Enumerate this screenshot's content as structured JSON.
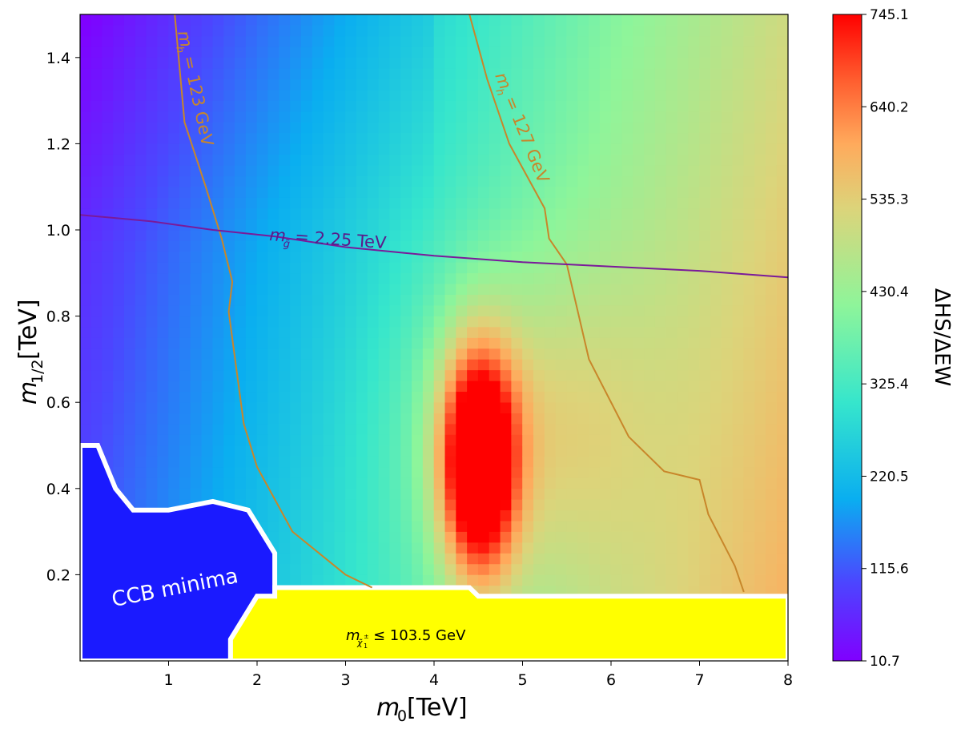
{
  "chart_data": {
    "type": "heatmap",
    "title": "",
    "xlabel": "m",
    "xlabel_sub": "0",
    "xlabel_unit": " [TeV]",
    "ylabel": "m",
    "ylabel_sub": "1/2",
    "ylabel_unit": " [TeV]",
    "xlim": [
      0,
      8
    ],
    "ylim": [
      0,
      1.5
    ],
    "x_ticks": [
      1,
      2,
      3,
      4,
      5,
      6,
      7,
      8
    ],
    "y_ticks": [
      0.2,
      0.4,
      0.6,
      0.8,
      1.0,
      1.2,
      1.4
    ],
    "x_tick_labels": [
      "1",
      "2",
      "3",
      "4",
      "5",
      "6",
      "7",
      "8"
    ],
    "y_tick_labels": [
      "0.2",
      "0.4",
      "0.6",
      "0.8",
      "1.0",
      "1.2",
      "1.4"
    ],
    "colorscale": "rainbow",
    "colorbar": {
      "label": "ΔHS/ΔEW",
      "range": [
        10.7,
        745.1
      ],
      "ticks": [
        10.7,
        115.6,
        220.5,
        325.4,
        430.4,
        535.3,
        640.2,
        745.1
      ],
      "tick_labels": [
        "10.7",
        "115.6",
        "220.5",
        "325.4",
        "430.4",
        "535.3",
        "640.2",
        "745.1"
      ]
    },
    "peak": {
      "x": 4.5,
      "y": 0.46,
      "value": 745.1
    },
    "contours": [
      {
        "label": "mh = 123 GeV",
        "color": "#c8862a",
        "points": [
          [
            1.07,
            1.5
          ],
          [
            1.18,
            1.25
          ],
          [
            1.42,
            1.1
          ],
          [
            1.6,
            0.98
          ],
          [
            1.72,
            0.88
          ],
          [
            1.68,
            0.81
          ],
          [
            1.85,
            0.55
          ],
          [
            2.0,
            0.45
          ],
          [
            2.4,
            0.3
          ],
          [
            3.0,
            0.2
          ],
          [
            3.3,
            0.17
          ]
        ]
      },
      {
        "label": "mh = 127 GeV",
        "color": "#c8862a",
        "points": [
          [
            4.4,
            1.5
          ],
          [
            4.6,
            1.35
          ],
          [
            4.85,
            1.2
          ],
          [
            5.25,
            1.05
          ],
          [
            5.3,
            0.98
          ],
          [
            5.5,
            0.92
          ],
          [
            5.75,
            0.7
          ],
          [
            6.2,
            0.52
          ],
          [
            6.6,
            0.44
          ],
          [
            7.0,
            0.42
          ],
          [
            7.1,
            0.34
          ],
          [
            7.4,
            0.22
          ],
          [
            7.5,
            0.16
          ]
        ]
      },
      {
        "label": "mg̃ = 2.25 TeV",
        "color": "#7a1a9a",
        "points": [
          [
            0,
            1.035
          ],
          [
            0.8,
            1.02
          ],
          [
            1.5,
            1.0
          ],
          [
            2.2,
            0.985
          ],
          [
            3.0,
            0.96
          ],
          [
            4.0,
            0.94
          ],
          [
            5.0,
            0.925
          ],
          [
            6.0,
            0.915
          ],
          [
            7.0,
            0.905
          ],
          [
            8.0,
            0.89
          ]
        ]
      }
    ],
    "regions": [
      {
        "label": "CCB minima",
        "color": "#1a1aff",
        "points": [
          [
            0,
            0
          ],
          [
            1.7,
            0
          ],
          [
            1.7,
            0.05
          ],
          [
            2.0,
            0.15
          ],
          [
            2.2,
            0.15
          ],
          [
            2.2,
            0.25
          ],
          [
            1.9,
            0.35
          ],
          [
            1.5,
            0.37
          ],
          [
            1.0,
            0.35
          ],
          [
            0.6,
            0.35
          ],
          [
            0.4,
            0.4
          ],
          [
            0.2,
            0.5
          ],
          [
            0,
            0.5
          ]
        ]
      },
      {
        "label": "mχ̃1± ≤ 103.5 GeV",
        "color": "#ffff00",
        "points": [
          [
            1.7,
            0
          ],
          [
            8,
            0
          ],
          [
            8,
            0.15
          ],
          [
            4.5,
            0.15
          ],
          [
            4.4,
            0.17
          ],
          [
            2.2,
            0.17
          ],
          [
            2.2,
            0.15
          ],
          [
            2.0,
            0.15
          ],
          [
            1.7,
            0.05
          ]
        ]
      }
    ],
    "annotations": {
      "ccb": "CCB minima",
      "mh123": "= 123 GeV",
      "mh127": "= 127 GeV",
      "mgluino": "= 2.25 TeV",
      "chargino": "≤ 103.5 GeV",
      "m": "m",
      "h": "h",
      "gluino_sub": "g̃",
      "chargino_sub": "χ̃",
      "chargino_sub_sup": "±",
      "chargino_sub_sub": "1"
    }
  }
}
